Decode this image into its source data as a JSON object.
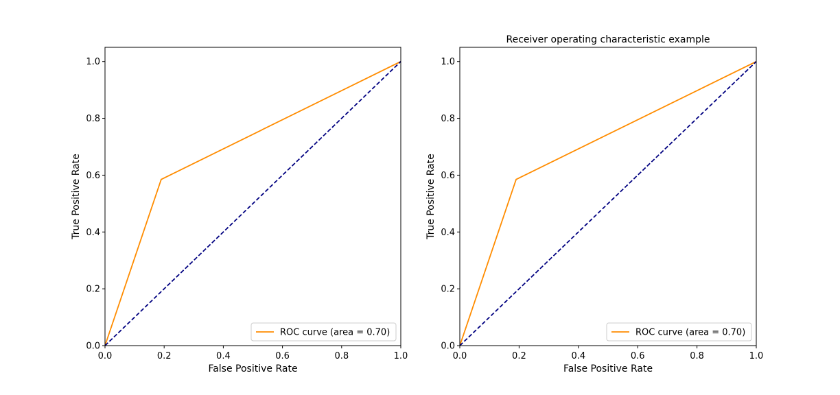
{
  "chart_data": [
    {
      "type": "line",
      "title": "",
      "xlabel": "False Positive Rate",
      "ylabel": "True Positive Rate",
      "xlim": [
        0.0,
        1.0
      ],
      "ylim": [
        0.0,
        1.05
      ],
      "xticks": [
        "0.0",
        "0.2",
        "0.4",
        "0.6",
        "0.8",
        "1.0"
      ],
      "yticks": [
        "0.0",
        "0.2",
        "0.4",
        "0.6",
        "0.8",
        "1.0"
      ],
      "grid": false,
      "legend_position": "lower-right",
      "series": [
        {
          "name": "ROC curve (area = 0.70)",
          "color": "#ff8c00",
          "style": "solid",
          "x": [
            0.0,
            0.19,
            1.0
          ],
          "y": [
            0.0,
            0.585,
            1.0
          ]
        },
        {
          "color": "#000080",
          "style": "dashed",
          "x": [
            0.0,
            1.0
          ],
          "y": [
            0.0,
            1.0
          ]
        }
      ]
    },
    {
      "type": "line",
      "title": "Receiver operating characteristic example",
      "xlabel": "False Positive Rate",
      "ylabel": "True Positive Rate",
      "xlim": [
        0.0,
        1.0
      ],
      "ylim": [
        0.0,
        1.05
      ],
      "xticks": [
        "0.0",
        "0.2",
        "0.4",
        "0.6",
        "0.8",
        "1.0"
      ],
      "yticks": [
        "0.0",
        "0.2",
        "0.4",
        "0.6",
        "0.8",
        "1.0"
      ],
      "grid": false,
      "legend_position": "lower-right",
      "series": [
        {
          "name": "ROC curve (area = 0.70)",
          "color": "#ff8c00",
          "style": "solid",
          "x": [
            0.0,
            0.19,
            1.0
          ],
          "y": [
            0.0,
            0.585,
            1.0
          ]
        },
        {
          "color": "#000080",
          "style": "dashed",
          "x": [
            0.0,
            1.0
          ],
          "y": [
            0.0,
            1.0
          ]
        }
      ]
    }
  ]
}
